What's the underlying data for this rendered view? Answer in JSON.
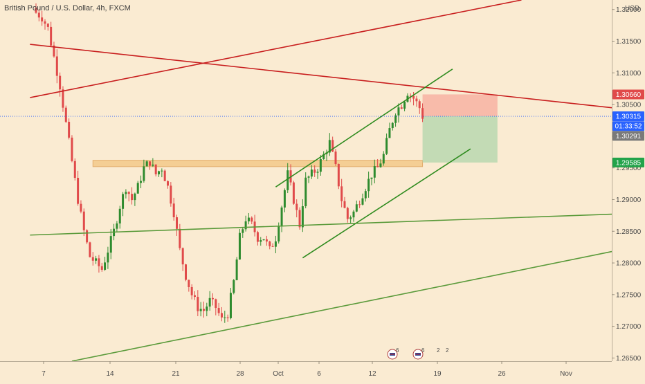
{
  "header": {
    "title": "British Pound / U.S. Dollar, 4h, FXCM",
    "currency": "USD"
  },
  "colors": {
    "background": "#faebd2",
    "candle_up": "#2e8b2e",
    "candle_down": "#e04a4a",
    "trendline_red": "#c81e1e",
    "trendline_green": "#5a9a3a",
    "channel_green": "#2e8b1e",
    "support_zone": "#f3c98a",
    "stop_zone": "#f7b3a3",
    "target_zone": "#b8d8b0",
    "tag_red": "#e04a4a",
    "tag_blue": "#2962ff",
    "tag_gray": "#7a7a7a",
    "tag_green": "#22a34a"
  },
  "chart_data": {
    "type": "candlestick",
    "title": "British Pound / U.S. Dollar, 4h, FXCM",
    "x_ticks": [
      "7",
      "14",
      "21",
      "28",
      "Oct",
      "6",
      "12",
      "19",
      "26",
      "Nov"
    ],
    "y_ticks": [
      "1.32000",
      "1.31500",
      "1.31000",
      "1.30500",
      "1.30000",
      "1.29500",
      "1.29000",
      "1.28500",
      "1.28000",
      "1.27500",
      "1.27000",
      "1.26500"
    ],
    "y_range": [
      1.2645,
      1.3215
    ],
    "price_tags": [
      {
        "label": "1.30660",
        "value": 1.3066,
        "color": "tag_red"
      },
      {
        "label": "1.30315",
        "value": 1.30315,
        "color": "tag_blue"
      },
      {
        "label": "01:33:52",
        "value": 1.3016,
        "color": "tag_blue"
      },
      {
        "label": "1.30291",
        "value": 1.30005,
        "color": "tag_gray"
      },
      {
        "label": "1.29585",
        "value": 1.29585,
        "color": "tag_green"
      }
    ],
    "path_waypoints": [
      [
        0,
        1.3195
      ],
      [
        2,
        1.3188
      ],
      [
        4,
        1.317
      ],
      [
        6,
        1.3125
      ],
      [
        8,
        1.308
      ],
      [
        10,
        1.302
      ],
      [
        12,
        1.296
      ],
      [
        14,
        1.29
      ],
      [
        16,
        1.285
      ],
      [
        18,
        1.281
      ],
      [
        20,
        1.28
      ],
      [
        22,
        1.279
      ],
      [
        24,
        1.282
      ],
      [
        26,
        1.285
      ],
      [
        28,
        1.289
      ],
      [
        30,
        1.292
      ],
      [
        32,
        1.29
      ],
      [
        34,
        1.292
      ],
      [
        36,
        1.295
      ],
      [
        38,
        1.296
      ],
      [
        40,
        1.294
      ],
      [
        42,
        1.295
      ],
      [
        44,
        1.292
      ],
      [
        46,
        1.288
      ],
      [
        48,
        1.282
      ],
      [
        50,
        1.278
      ],
      [
        52,
        1.275
      ],
      [
        54,
        1.273
      ],
      [
        56,
        1.2725
      ],
      [
        58,
        1.274
      ],
      [
        60,
        1.273
      ],
      [
        62,
        1.271
      ],
      [
        64,
        1.272
      ],
      [
        66,
        1.277
      ],
      [
        68,
        1.284
      ],
      [
        70,
        1.287
      ],
      [
        72,
        1.286
      ],
      [
        74,
        1.284
      ],
      [
        76,
        1.284
      ],
      [
        78,
        1.282
      ],
      [
        80,
        1.284
      ],
      [
        82,
        1.289
      ],
      [
        84,
        1.294
      ],
      [
        86,
        1.29
      ],
      [
        88,
        1.286
      ],
      [
        90,
        1.293
      ],
      [
        92,
        1.294
      ],
      [
        94,
        1.295
      ],
      [
        96,
        1.297
      ],
      [
        98,
        1.299
      ],
      [
        100,
        1.295
      ],
      [
        102,
        1.29
      ],
      [
        104,
        1.287
      ],
      [
        106,
        1.288
      ],
      [
        108,
        1.29
      ],
      [
        110,
        1.292
      ],
      [
        112,
        1.294
      ],
      [
        114,
        1.295
      ],
      [
        116,
        1.297
      ],
      [
        118,
        1.301
      ],
      [
        120,
        1.304
      ],
      [
        122,
        1.305
      ],
      [
        124,
        1.307
      ],
      [
        126,
        1.306
      ],
      [
        128,
        1.3045
      ],
      [
        129,
        1.30315
      ]
    ],
    "lines": [
      {
        "name": "red-trendline-descending",
        "color": "trendline_red",
        "x1": -2,
        "y1": 1.3145,
        "x2": 205,
        "y2": 1.3045
      },
      {
        "name": "red-trendline-ascending",
        "color": "trendline_red",
        "x1": -2,
        "y1": 1.3061,
        "x2": 162,
        "y2": 1.3215
      },
      {
        "name": "green-channel-upper",
        "color": "channel_green",
        "x1": 80,
        "y1": 1.292,
        "x2": 139,
        "y2": 1.3106
      },
      {
        "name": "green-channel-lower",
        "color": "channel_green",
        "x1": 89,
        "y1": 1.2808,
        "x2": 145,
        "y2": 1.298
      },
      {
        "name": "green-trendline-long",
        "color": "trendline_green",
        "x1": -2,
        "y1": 1.2844,
        "x2": 205,
        "y2": 1.2877
      },
      {
        "name": "green-trendline-lower",
        "color": "trendline_green",
        "x1": 12,
        "y1": 1.2645,
        "x2": 196,
        "y2": 1.2818
      }
    ],
    "support_zone": {
      "x1": 19,
      "x2": 129,
      "y_low": 1.2952,
      "y_high": 1.2962
    },
    "stop_zone": {
      "x1": 129,
      "x2": 154,
      "y_low": 1.30315,
      "y_high": 1.3066
    },
    "target_zone": {
      "x1": 129,
      "x2": 154,
      "y_low": 1.29585,
      "y_high": 1.30315
    },
    "last_price_line": 1.30315
  },
  "events": [
    {
      "icon": "flag-icon",
      "label": "6"
    },
    {
      "icon": "flag-icon",
      "label": "6"
    },
    {
      "icon": "flag-icon",
      "label": "2"
    },
    {
      "icon": "flag-icon",
      "label": "2"
    }
  ]
}
